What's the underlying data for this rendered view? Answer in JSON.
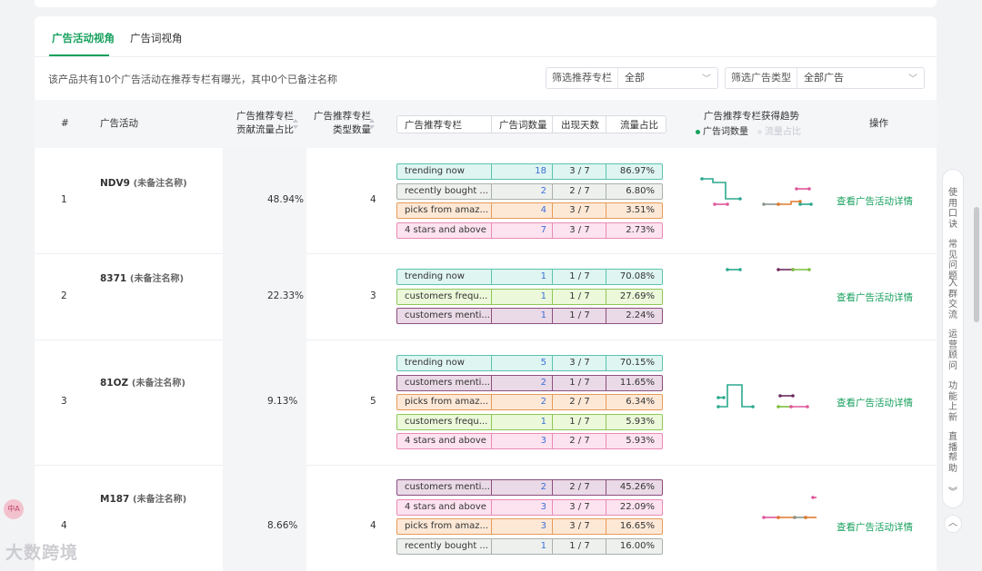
{
  "tabs": [
    {
      "label": "广告活动视角",
      "active": true
    },
    {
      "label": "广告词视角",
      "active": false
    }
  ],
  "summary": "该产品共有10个广告活动在推荐专栏有曝光，其中0个已备注名称",
  "filters": [
    {
      "label": "筛选推荐专栏",
      "value": "全部"
    },
    {
      "label": "筛选广告类型",
      "value": "全部广告"
    }
  ],
  "headers": {
    "index": "#",
    "campaign": "广告活动",
    "contrib_1": "广告推荐专栏",
    "contrib_2": "贡献流量占比",
    "types_1": "广告推荐专栏",
    "types_2": "类型数量",
    "sub": {
      "shelf": "广告推荐专栏",
      "kw": "广告词数量",
      "days": "出现天数",
      "pct": "流量占比"
    },
    "trend": "广告推荐专栏获得趋势",
    "legend_kw": "广告词数量",
    "legend_pct": "流量占比",
    "action": "操作"
  },
  "rows": [
    {
      "index": "1",
      "name": "NDV9",
      "note": "(未备注名称)",
      "contrib": "48.94%",
      "types": "4",
      "link": "查看广告活动详情",
      "shelves": [
        {
          "name": "trending now",
          "kw": "18",
          "days": "3 / 7",
          "pct": "86.97%",
          "color": "teal"
        },
        {
          "name": "recently bought ...",
          "kw": "2",
          "days": "2 / 7",
          "pct": "6.80%",
          "color": "gray"
        },
        {
          "name": "picks from amaz...",
          "kw": "4",
          "days": "3 / 7",
          "pct": "3.51%",
          "color": "orange"
        },
        {
          "name": "4 stars and above",
          "kw": "7",
          "days": "3 / 7",
          "pct": "2.73%",
          "color": "pink"
        }
      ]
    },
    {
      "index": "2",
      "name": "8371",
      "note": "(未备注名称)",
      "contrib": "22.33%",
      "types": "3",
      "link": "查看广告活动详情",
      "shelves": [
        {
          "name": "trending now",
          "kw": "1",
          "days": "1 / 7",
          "pct": "70.08%",
          "color": "teal"
        },
        {
          "name": "customers frequ...",
          "kw": "1",
          "days": "1 / 7",
          "pct": "27.69%",
          "color": "lime"
        },
        {
          "name": "customers menti...",
          "kw": "1",
          "days": "1 / 7",
          "pct": "2.24%",
          "color": "purple"
        }
      ]
    },
    {
      "index": "3",
      "name": "81OZ",
      "note": "(未备注名称)",
      "contrib": "9.13%",
      "types": "5",
      "link": "查看广告活动详情",
      "shelves": [
        {
          "name": "trending now",
          "kw": "5",
          "days": "3 / 7",
          "pct": "70.15%",
          "color": "teal"
        },
        {
          "name": "customers menti...",
          "kw": "2",
          "days": "1 / 7",
          "pct": "11.65%",
          "color": "purple"
        },
        {
          "name": "picks from amaz...",
          "kw": "2",
          "days": "2 / 7",
          "pct": "6.34%",
          "color": "orange"
        },
        {
          "name": "customers frequ...",
          "kw": "1",
          "days": "1 / 7",
          "pct": "5.93%",
          "color": "lime"
        },
        {
          "name": "4 stars and above",
          "kw": "3",
          "days": "2 / 7",
          "pct": "5.93%",
          "color": "pink"
        }
      ]
    },
    {
      "index": "4",
      "name": "M187",
      "note": "(未备注名称)",
      "contrib": "8.66%",
      "types": "4",
      "link": "查看广告活动详情",
      "shelves": [
        {
          "name": "customers menti...",
          "kw": "2",
          "days": "2 / 7",
          "pct": "45.26%",
          "color": "purple"
        },
        {
          "name": "4 stars and above",
          "kw": "3",
          "days": "3 / 7",
          "pct": "22.09%",
          "color": "pink"
        },
        {
          "name": "picks from amaz...",
          "kw": "3",
          "days": "3 / 7",
          "pct": "16.65%",
          "color": "orange"
        },
        {
          "name": "recently bought ...",
          "kw": "1",
          "days": "1 / 7",
          "pct": "16.00%",
          "color": "gray"
        }
      ]
    }
  ],
  "shelf_colors": {
    "teal": {
      "bg": "#def5f1",
      "border": "#5cc3ae",
      "line": "#2aa88e"
    },
    "gray": {
      "bg": "#eef0ee",
      "border": "#a9b0aa",
      "line": "#8b948c"
    },
    "orange": {
      "bg": "#fde8d6",
      "border": "#e69a5a",
      "line": "#e07a2c"
    },
    "pink": {
      "bg": "#fde3ef",
      "border": "#e98ab5",
      "line": "#e0579a"
    },
    "lime": {
      "bg": "#ebf8d9",
      "border": "#8fc65a",
      "line": "#7bbf3c"
    },
    "purple": {
      "bg": "#ead9e6",
      "border": "#8c4f7f",
      "line": "#6d2a5f"
    }
  },
  "help_groups": [
    "使用口诀",
    "常见问题",
    "入群交流",
    "运营顾问",
    "功能上新",
    "直播帮助"
  ],
  "watermark": "大数跨境",
  "accent": "#17a05d"
}
